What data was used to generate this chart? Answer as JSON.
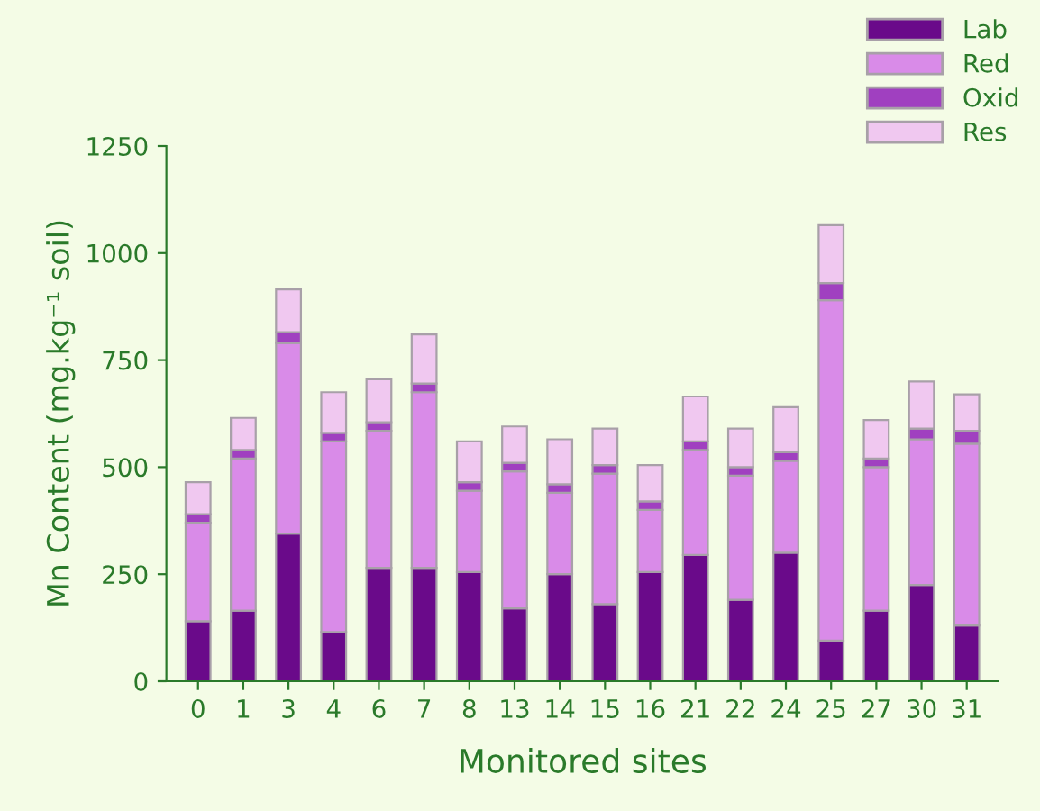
{
  "chart_data": {
    "type": "bar",
    "stacked": true,
    "xlabel": "Monitored sites",
    "ylabel": "Mn Content (mg.kg⁻¹ soil)",
    "categories": [
      "0",
      "1",
      "3",
      "4",
      "6",
      "7",
      "8",
      "13",
      "14",
      "15",
      "16",
      "21",
      "22",
      "24",
      "25",
      "27",
      "30",
      "31"
    ],
    "series": [
      {
        "name": "Lab",
        "color": "#6a0a8a",
        "values": [
          140,
          165,
          345,
          115,
          265,
          265,
          255,
          170,
          250,
          180,
          255,
          295,
          190,
          300,
          95,
          165,
          225,
          130
        ]
      },
      {
        "name": "Red",
        "color": "#d98be8",
        "values": [
          230,
          355,
          445,
          445,
          320,
          410,
          190,
          320,
          190,
          305,
          145,
          245,
          290,
          215,
          795,
          335,
          340,
          425
        ]
      },
      {
        "name": "Oxid",
        "color": "#a040c0",
        "values": [
          20,
          20,
          25,
          20,
          20,
          20,
          20,
          20,
          20,
          20,
          20,
          20,
          20,
          20,
          40,
          20,
          25,
          30
        ]
      },
      {
        "name": "Res",
        "color": "#f0c8f0",
        "values": [
          75,
          75,
          100,
          95,
          100,
          115,
          95,
          85,
          105,
          85,
          85,
          105,
          90,
          105,
          135,
          90,
          110,
          85
        ]
      }
    ],
    "ylim": [
      0,
      1250
    ],
    "yticks": [
      0,
      250,
      500,
      750,
      1000,
      1250
    ],
    "grid": false,
    "legend": "top right"
  }
}
